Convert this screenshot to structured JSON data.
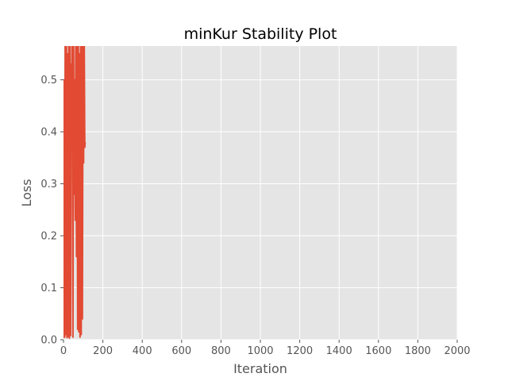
{
  "chart_data": {
    "type": "line",
    "title": "minKur Stability Plot",
    "xlabel": "Iteration",
    "ylabel": "Loss",
    "xlim": [
      0,
      2000
    ],
    "ylim": [
      0,
      0.565
    ],
    "xticks": [
      0,
      200,
      400,
      600,
      800,
      1000,
      1200,
      1400,
      1600,
      1800,
      2000
    ],
    "yticks": [
      0.0,
      0.1,
      0.2,
      0.3,
      0.4,
      0.5
    ],
    "grid": true,
    "legend": "none",
    "series": [
      {
        "color": "#E24A33",
        "x": [
          0,
          3,
          6,
          9,
          12,
          15,
          18,
          21,
          24,
          27,
          30,
          33,
          36,
          39,
          42,
          45,
          48,
          51,
          54,
          57,
          60,
          63,
          66,
          69,
          72,
          75,
          78,
          81,
          84,
          87,
          90,
          93,
          96,
          99,
          102,
          105,
          108,
          110
        ],
        "y": [
          0.003,
          0.5,
          0.005,
          0.62,
          0.01,
          0.58,
          0.004,
          0.55,
          0.006,
          0.6,
          0.003,
          0.7,
          0.008,
          0.53,
          0.43,
          0.62,
          0.005,
          0.6,
          0.28,
          0.5,
          0.23,
          0.65,
          0.16,
          0.58,
          0.02,
          0.62,
          0.015,
          0.55,
          0.005,
          0.6,
          0.01,
          0.64,
          0.04,
          0.6,
          0.34,
          0.6,
          0.37,
          0.38
        ]
      }
    ]
  }
}
